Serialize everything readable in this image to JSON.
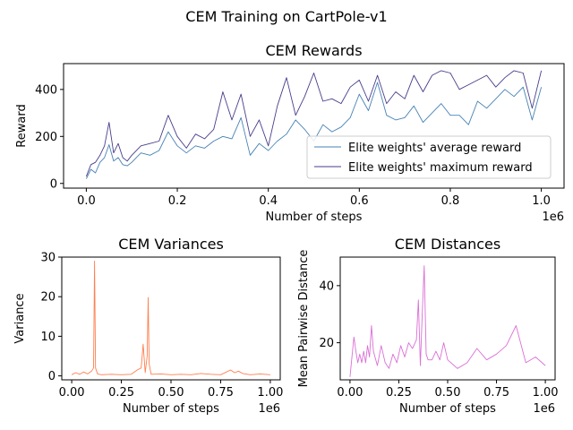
{
  "figure": {
    "title": "CEM Training on CartPole-v1"
  },
  "chart_data": [
    {
      "type": "line",
      "title": "CEM Rewards",
      "xlabel": "Number of steps",
      "ylabel": "Reward",
      "x_offset_label": "1e6",
      "xlim": [
        -0.05,
        1.05
      ],
      "ylim": [
        -20,
        510
      ],
      "xticks": [
        0.0,
        0.2,
        0.4,
        0.6,
        0.8,
        1.0
      ],
      "xtick_labels": [
        "0.0",
        "0.2",
        "0.4",
        "0.6",
        "0.8",
        "1.0"
      ],
      "yticks": [
        0,
        200,
        400
      ],
      "ytick_labels": [
        "0",
        "200",
        "400"
      ],
      "grid": false,
      "legend": "lower-right",
      "series": [
        {
          "name": "Elite weights' average reward",
          "color": "#4682b4",
          "x": [
            0.0,
            0.01,
            0.02,
            0.03,
            0.04,
            0.05,
            0.06,
            0.07,
            0.08,
            0.09,
            0.1,
            0.12,
            0.14,
            0.16,
            0.18,
            0.2,
            0.22,
            0.24,
            0.26,
            0.28,
            0.3,
            0.32,
            0.34,
            0.36,
            0.38,
            0.4,
            0.42,
            0.44,
            0.46,
            0.48,
            0.5,
            0.52,
            0.54,
            0.56,
            0.58,
            0.6,
            0.62,
            0.64,
            0.66,
            0.68,
            0.7,
            0.72,
            0.74,
            0.76,
            0.78,
            0.8,
            0.82,
            0.84,
            0.86,
            0.88,
            0.9,
            0.92,
            0.94,
            0.96,
            0.98,
            1.0
          ],
          "values": [
            20,
            60,
            45,
            90,
            110,
            165,
            95,
            110,
            80,
            75,
            90,
            130,
            120,
            140,
            220,
            160,
            130,
            160,
            150,
            180,
            200,
            190,
            280,
            120,
            170,
            140,
            180,
            210,
            270,
            230,
            180,
            250,
            220,
            240,
            280,
            380,
            310,
            430,
            290,
            270,
            280,
            330,
            260,
            300,
            340,
            290,
            290,
            250,
            350,
            320,
            360,
            400,
            370,
            410,
            270,
            410
          ]
        },
        {
          "name": "Elite weights' maximum reward",
          "color": "#483d8b",
          "x": [
            0.0,
            0.01,
            0.02,
            0.03,
            0.04,
            0.05,
            0.06,
            0.07,
            0.08,
            0.09,
            0.1,
            0.12,
            0.14,
            0.16,
            0.18,
            0.2,
            0.22,
            0.24,
            0.26,
            0.28,
            0.3,
            0.32,
            0.34,
            0.36,
            0.38,
            0.4,
            0.42,
            0.44,
            0.46,
            0.48,
            0.5,
            0.52,
            0.54,
            0.56,
            0.58,
            0.6,
            0.62,
            0.64,
            0.66,
            0.68,
            0.7,
            0.72,
            0.74,
            0.76,
            0.78,
            0.8,
            0.82,
            0.84,
            0.86,
            0.88,
            0.9,
            0.92,
            0.94,
            0.96,
            0.98,
            1.0
          ],
          "values": [
            30,
            80,
            90,
            120,
            160,
            260,
            130,
            170,
            110,
            95,
            120,
            160,
            170,
            180,
            290,
            200,
            150,
            210,
            190,
            230,
            390,
            270,
            380,
            200,
            270,
            160,
            330,
            450,
            290,
            370,
            470,
            350,
            360,
            340,
            410,
            440,
            350,
            460,
            340,
            390,
            360,
            460,
            390,
            460,
            480,
            470,
            400,
            420,
            440,
            460,
            410,
            450,
            480,
            470,
            320,
            480
          ]
        }
      ]
    },
    {
      "type": "line",
      "title": "CEM Variances",
      "xlabel": "Number of steps",
      "ylabel": "Variance",
      "x_offset_label": "1e6",
      "xlim": [
        -0.05,
        1.05
      ],
      "ylim": [
        -1,
        30
      ],
      "xticks": [
        0.0,
        0.25,
        0.5,
        0.75,
        1.0
      ],
      "xtick_labels": [
        "0.00",
        "0.25",
        "0.50",
        "0.75",
        "1.00"
      ],
      "yticks": [
        0,
        10,
        20,
        30
      ],
      "ytick_labels": [
        "0",
        "10",
        "20",
        "30"
      ],
      "grid": false,
      "series": [
        {
          "color": "#ff7f50",
          "x": [
            0.0,
            0.02,
            0.04,
            0.06,
            0.08,
            0.1,
            0.11,
            0.115,
            0.12,
            0.13,
            0.15,
            0.2,
            0.25,
            0.3,
            0.33,
            0.35,
            0.36,
            0.37,
            0.38,
            0.385,
            0.39,
            0.4,
            0.45,
            0.5,
            0.55,
            0.6,
            0.65,
            0.7,
            0.75,
            0.8,
            0.82,
            0.84,
            0.86,
            0.9,
            0.95,
            1.0
          ],
          "values": [
            0.3,
            0.8,
            0.4,
            1.0,
            0.5,
            1.2,
            2.0,
            29.0,
            2.0,
            0.5,
            0.3,
            0.4,
            0.3,
            0.4,
            1.5,
            2.0,
            8.0,
            0.8,
            5.0,
            19.8,
            3.0,
            0.4,
            0.5,
            0.3,
            0.4,
            0.3,
            0.6,
            0.4,
            0.3,
            1.5,
            0.8,
            1.2,
            0.6,
            0.3,
            0.5,
            0.3
          ]
        }
      ]
    },
    {
      "type": "line",
      "title": "CEM Distances",
      "xlabel": "Number of steps",
      "ylabel": "Mean Pairwise Distance",
      "x_offset_label": "1e6",
      "xlim": [
        -0.05,
        1.05
      ],
      "ylim": [
        7,
        50
      ],
      "xticks": [
        0.0,
        0.25,
        0.5,
        0.75,
        1.0
      ],
      "xtick_labels": [
        "0.00",
        "0.25",
        "0.50",
        "0.75",
        "1.00"
      ],
      "yticks": [
        20,
        40
      ],
      "ytick_labels": [
        "20",
        "40"
      ],
      "grid": false,
      "series": [
        {
          "color": "#da70d6",
          "x": [
            0.0,
            0.01,
            0.02,
            0.03,
            0.04,
            0.05,
            0.06,
            0.07,
            0.08,
            0.09,
            0.1,
            0.11,
            0.12,
            0.14,
            0.16,
            0.18,
            0.2,
            0.22,
            0.24,
            0.26,
            0.28,
            0.3,
            0.32,
            0.34,
            0.35,
            0.36,
            0.37,
            0.38,
            0.39,
            0.4,
            0.42,
            0.44,
            0.46,
            0.48,
            0.5,
            0.55,
            0.6,
            0.65,
            0.7,
            0.75,
            0.8,
            0.85,
            0.9,
            0.95,
            1.0
          ],
          "values": [
            8,
            15,
            22,
            17,
            13,
            16,
            13,
            17,
            13,
            19,
            15,
            26,
            17,
            12,
            19,
            13,
            11,
            16,
            13,
            19,
            15,
            20,
            18,
            21,
            35,
            12,
            30,
            47,
            16,
            14,
            14,
            17,
            14,
            20,
            14,
            11,
            13,
            18,
            14,
            16,
            19,
            26,
            13,
            15,
            12
          ]
        }
      ]
    }
  ]
}
